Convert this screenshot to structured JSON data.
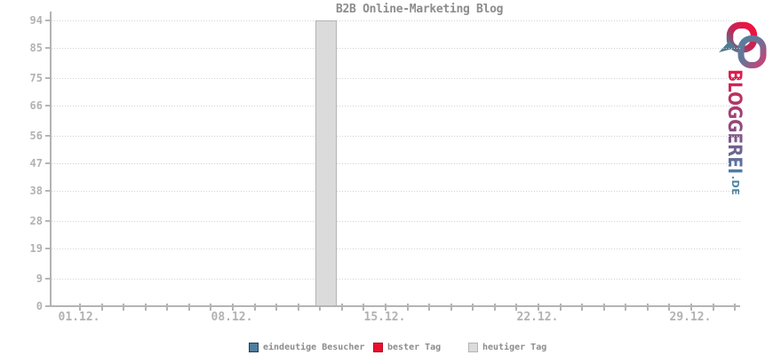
{
  "chart_data": {
    "type": "bar",
    "title": "B2B Online-Marketing Blog",
    "xlabel": "",
    "ylabel": "",
    "ylim": [
      0,
      94
    ],
    "y_ticks": [
      0,
      9,
      19,
      28,
      38,
      47,
      56,
      66,
      75,
      85,
      94
    ],
    "n_day_ticks": 31,
    "x_tick_labels": [
      {
        "label": "01.12.",
        "day_index": 0
      },
      {
        "label": "08.12.",
        "day_index": 7
      },
      {
        "label": "15.12.",
        "day_index": 14
      },
      {
        "label": "22.12.",
        "day_index": 21
      },
      {
        "label": "29.12.",
        "day_index": 28
      }
    ],
    "grid": "horizontal-dotted",
    "legend_position": "bottom",
    "series": [
      {
        "name": "eindeutige Besucher",
        "color": "#4e7d9d",
        "border": "#1d4056",
        "points": []
      },
      {
        "name": "bester Tag",
        "color": "#e90f2e",
        "border": "#b40b23",
        "points": []
      },
      {
        "name": "heutiger Tag",
        "color": "#dbdbdb",
        "border": "#b4b4b4",
        "points": [
          {
            "date": "12.12.",
            "day_index": 11,
            "value": 94
          }
        ]
      }
    ]
  },
  "logo": {
    "text": "BLOGGEREI",
    "tld": ".DE",
    "colors": {
      "red": "#e5194a",
      "purple": "#8d4b7e",
      "blue": "#4d7ea7",
      "teal": "#4e87a3"
    }
  },
  "colors": {
    "title": "#8c8c8c",
    "axis": "#b4b4b4",
    "grid": "#d2d2d2",
    "tick_label": "#b2b2b2",
    "legend_text": "#8c8c8c",
    "bar_fill": "#dbdbdb",
    "bar_border": "#b4b4b4",
    "background": "#ffffff"
  }
}
